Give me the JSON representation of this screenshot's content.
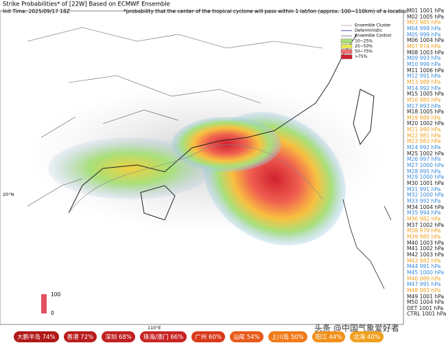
{
  "header": {
    "title": "Strike Probabilities* of [22W] Based on ECMWF Ensemble",
    "init_time": "Init Time: 2025/09/17 18Z",
    "note": "*probability that the center of the tropical cyclone will pass within 1 lat/lon (approx. 100~110km) of a location"
  },
  "legend": {
    "items": [
      "Ensemble Cluster",
      "Deterministic",
      "Ensemble Control",
      "10~25%",
      "25~50%",
      "50~75%",
      ">75%"
    ],
    "colors": [
      "#bbbbbb",
      "#5555cc",
      "#888888",
      "#a8e07a",
      "#e8e85a",
      "#f07070",
      "#d02030"
    ]
  },
  "colorbar": {
    "max": "100",
    "min": "0"
  },
  "axes": {
    "lat": "20°N",
    "lon": "110°E"
  },
  "members": [
    {
      "text": "M01 1001 hPa",
      "color": "#222222"
    },
    {
      "text": "M02 1005 hPa",
      "color": "#222222"
    },
    {
      "text": "M03 985 hPa",
      "color": "#f0a020"
    },
    {
      "text": "M04 999 hPa",
      "color": "#3a8ad8"
    },
    {
      "text": "M05 999 hPa",
      "color": "#3a8ad8"
    },
    {
      "text": "M06 1004 hPa",
      "color": "#222222"
    },
    {
      "text": "M07 974 hPa",
      "color": "#f0a020"
    },
    {
      "text": "M08 1003 hPa",
      "color": "#222222"
    },
    {
      "text": "M09 993 hPa",
      "color": "#3a8ad8"
    },
    {
      "text": "M10 999 hPa",
      "color": "#3a8ad8"
    },
    {
      "text": "M11 1006 hPa",
      "color": "#222222"
    },
    {
      "text": "M12 991 hPa",
      "color": "#3a8ad8"
    },
    {
      "text": "M13 988 hPa",
      "color": "#f0a020"
    },
    {
      "text": "M14 992 hPa",
      "color": "#3a8ad8"
    },
    {
      "text": "M15 1005 hPa",
      "color": "#222222"
    },
    {
      "text": "M16 980 hPa",
      "color": "#f0a020"
    },
    {
      "text": "M17 993 hPa",
      "color": "#3a8ad8"
    },
    {
      "text": "M18 1005 hPa",
      "color": "#222222"
    },
    {
      "text": "M19 989 hPa",
      "color": "#f0a020"
    },
    {
      "text": "M20 1002 hPa",
      "color": "#222222"
    },
    {
      "text": "M21 990 hPa",
      "color": "#f0a020"
    },
    {
      "text": "M22 981 hPa",
      "color": "#f0a020"
    },
    {
      "text": "M23 983 hPa",
      "color": "#f0a020"
    },
    {
      "text": "M24 992 hPa",
      "color": "#3a8ad8"
    },
    {
      "text": "M25 1002 hPa",
      "color": "#222222"
    },
    {
      "text": "M26 997 hPa",
      "color": "#3a8ad8"
    },
    {
      "text": "M27 1000 hPa",
      "color": "#3a8ad8"
    },
    {
      "text": "M28 995 hPa",
      "color": "#3a8ad8"
    },
    {
      "text": "M29 1000 hPa",
      "color": "#3a8ad8"
    },
    {
      "text": "M30 1001 hPa",
      "color": "#222222"
    },
    {
      "text": "M31 991 hPa",
      "color": "#3a8ad8"
    },
    {
      "text": "M32 1000 hPa",
      "color": "#3a8ad8"
    },
    {
      "text": "M33 992 hPa",
      "color": "#3a8ad8"
    },
    {
      "text": "M34 1004 hPa",
      "color": "#222222"
    },
    {
      "text": "M35 994 hPa",
      "color": "#3a8ad8"
    },
    {
      "text": "M36 982 hPa",
      "color": "#f0a020"
    },
    {
      "text": "M37 1002 hPa",
      "color": "#222222"
    },
    {
      "text": "M38 979 hPa",
      "color": "#f0a020"
    },
    {
      "text": "M39 985 hPa",
      "color": "#f0a020"
    },
    {
      "text": "M40 1003 hPa",
      "color": "#222222"
    },
    {
      "text": "M41 1002 hPa",
      "color": "#222222"
    },
    {
      "text": "M42 1003 hPa",
      "color": "#222222"
    },
    {
      "text": "M43 982 hPa",
      "color": "#f0a020"
    },
    {
      "text": "M44 991 hPa",
      "color": "#3a8ad8"
    },
    {
      "text": "M45 1000 hPa",
      "color": "#3a8ad8"
    },
    {
      "text": "M46 989 hPa",
      "color": "#f0a020"
    },
    {
      "text": "M47 991 hPa",
      "color": "#3a8ad8"
    },
    {
      "text": "M48 983 hPa",
      "color": "#f0a020"
    },
    {
      "text": "M49 1001 hPa",
      "color": "#222222"
    },
    {
      "text": "M50 1004 hPa",
      "color": "#222222"
    },
    {
      "text": "DET 1001 hPa",
      "color": "#222222"
    },
    {
      "text": "CTRL 1001 hPa",
      "color": "#222222"
    }
  ],
  "badges": [
    {
      "text": "大鹏半岛 74%",
      "color": "#b01818"
    },
    {
      "text": "香港 72%",
      "color": "#b81c1c"
    },
    {
      "text": "深圳 68%",
      "color": "#c02020"
    },
    {
      "text": "珠海/澳门 66%",
      "color": "#c82424"
    },
    {
      "text": "广州 60%",
      "color": "#d83a1a"
    },
    {
      "text": "汕尾 54%",
      "color": "#e85a1a"
    },
    {
      "text": "上川岛 50%",
      "color": "#f07a1a"
    },
    {
      "text": "阳江 44%",
      "color": "#f0901a"
    },
    {
      "text": "北海 40%",
      "color": "#f0a020"
    }
  ],
  "watermark": "头条 @中国气象爱好者"
}
